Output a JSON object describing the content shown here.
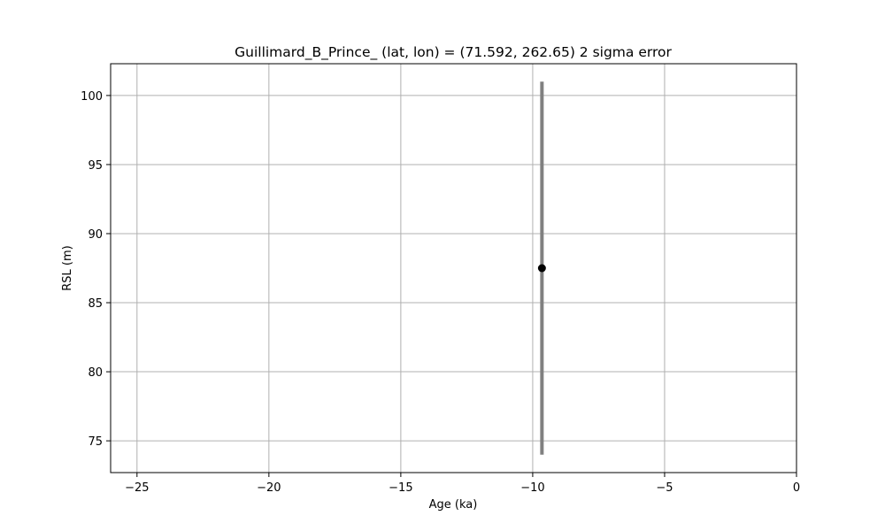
{
  "chart_data": {
    "type": "scatter",
    "title": "Guillimard_B_Prince_ (lat, lon) = (71.592, 262.65)  2 sigma error",
    "xlabel": "Age (ka)",
    "ylabel": "RSL (m)",
    "xlim": [
      -26,
      0
    ],
    "ylim": [
      72.7,
      102.3
    ],
    "x_ticks": [
      -25,
      -20,
      -15,
      -10,
      -5,
      0
    ],
    "x_tick_labels": [
      "−25",
      "−20",
      "−15",
      "−10",
      "−5",
      "0"
    ],
    "y_ticks": [
      75,
      80,
      85,
      90,
      95,
      100
    ],
    "y_tick_labels": [
      "75",
      "80",
      "85",
      "90",
      "95",
      "100"
    ],
    "grid": true,
    "legend": "none",
    "points": [
      {
        "x": -9.65,
        "y": 87.5,
        "y_low": 74.0,
        "y_high": 101.0
      }
    ],
    "colors": {
      "marker": "#000000",
      "error_bar": "#808080",
      "grid": "#b0b0b0"
    }
  }
}
